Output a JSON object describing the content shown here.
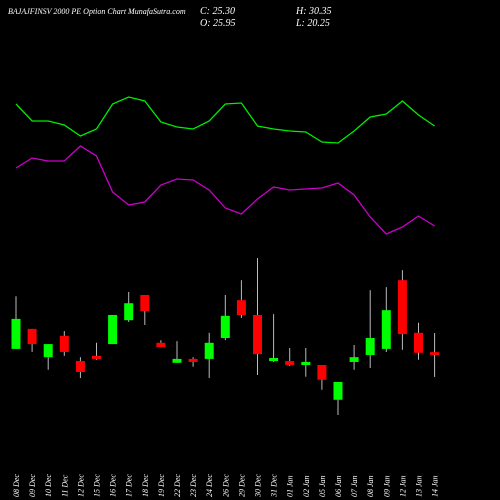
{
  "chart_data": {
    "type": "candlestick",
    "title": "BAJAJFINSV 2000 PE Option  Chart MunafaSutra.com",
    "info": [
      "C: 25.30",
      "H: 30.35",
      "O: 25.95",
      "L: 20.25"
    ],
    "categories": [
      "08 Dec",
      "09 Dec",
      "10 Dec",
      "11 Dec",
      "12 Dec",
      "15 Dec",
      "16 Dec",
      "17 Dec",
      "18 Dec",
      "19 Dec",
      "22 Dec",
      "23 Dec",
      "24 Dec",
      "26 Dec",
      "29 Dec",
      "30 Dec",
      "31 Dec",
      "01 Jan",
      "02 Jan",
      "05 Jan",
      "06 Jan",
      "07 Jan",
      "08 Jan",
      "09 Jan",
      "12 Jan",
      "13 Jan",
      "14 Jan"
    ],
    "open": [
      26.7,
      31.3,
      24.8,
      29.7,
      23.9,
      25.1,
      27.8,
      33.3,
      39.1,
      28.1,
      23.5,
      24.4,
      24.4,
      29.2,
      37.9,
      34.5,
      23.9,
      23.9,
      23.0,
      23.0,
      15.0,
      23.7,
      25.3,
      26.7,
      42.5,
      30.4,
      25.95
    ],
    "high": [
      38.8,
      31.3,
      27.8,
      30.8,
      24.8,
      28.1,
      34.5,
      39.8,
      39.1,
      28.7,
      28.5,
      24.8,
      30.4,
      39.1,
      42.5,
      47.6,
      34.7,
      26.9,
      26.9,
      23.0,
      19.1,
      27.6,
      40.2,
      40.9,
      44.8,
      32.7,
      30.35
    ],
    "low": [
      26.7,
      26.0,
      21.9,
      25.1,
      20.0,
      24.2,
      27.8,
      32.9,
      32.2,
      27.1,
      23.5,
      22.6,
      20.0,
      28.7,
      33.8,
      20.7,
      23.7,
      22.8,
      20.3,
      17.3,
      11.5,
      21.9,
      22.3,
      26.0,
      26.5,
      24.2,
      20.25
    ],
    "close": [
      33.6,
      27.8,
      27.8,
      26.0,
      21.4,
      24.4,
      34.5,
      37.2,
      35.4,
      27.1,
      24.4,
      23.7,
      28.1,
      34.3,
      34.5,
      25.5,
      24.6,
      23.0,
      23.7,
      19.6,
      19.1,
      24.8,
      29.2,
      35.6,
      30.1,
      25.8,
      25.3
    ],
    "up_color": "#00ff00",
    "down_color": "#ff0000",
    "lines": [
      {
        "color": "#00ee00",
        "values": [
          146,
          129,
          129,
          125,
          114,
          121,
          146,
          153,
          149,
          128,
          123,
          121,
          129,
          146,
          147,
          124,
          121,
          119,
          118,
          108,
          107,
          119,
          133,
          136,
          149,
          135,
          124
        ]
      },
      {
        "color": "#cc00cc",
        "values": [
          82,
          92,
          89,
          89,
          104,
          94,
          58,
          45,
          48,
          65,
          71,
          70,
          60,
          42,
          36,
          51,
          63,
          60,
          61,
          62,
          67,
          55,
          33,
          16,
          23,
          34,
          24
        ]
      }
    ]
  }
}
